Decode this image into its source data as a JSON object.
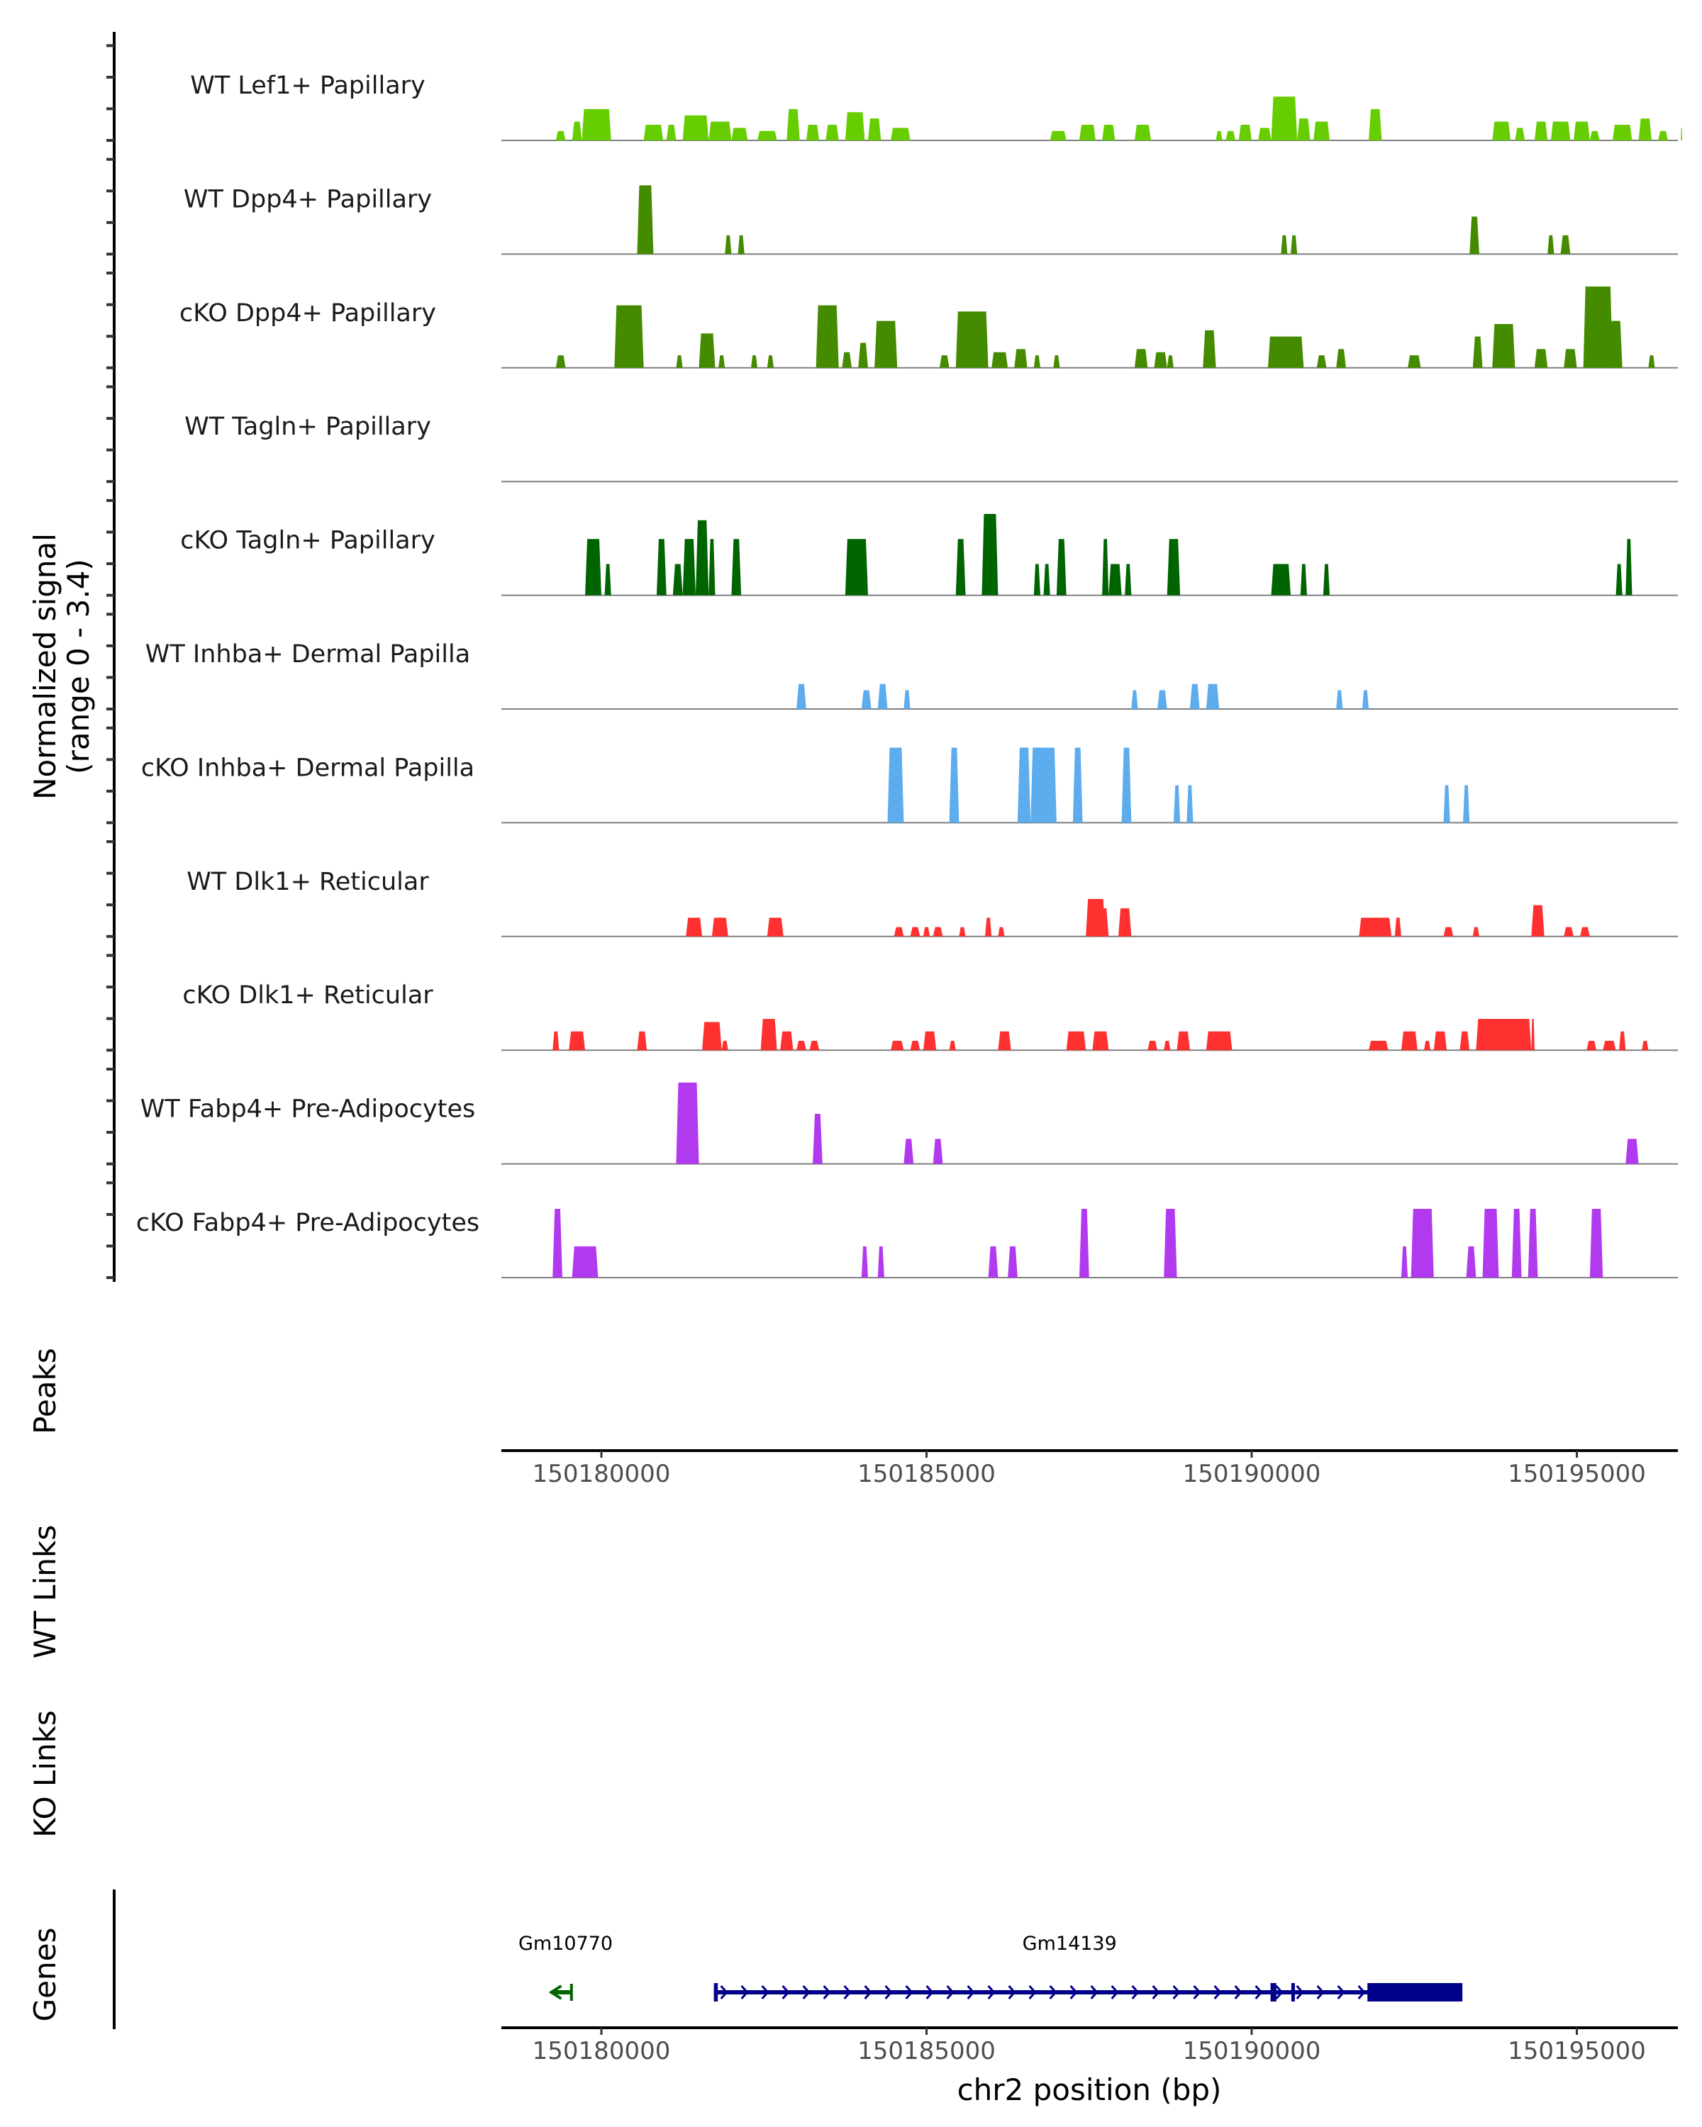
{
  "chart_data": {
    "type": "area",
    "title": "",
    "ylabel": "Normalized signal\n(range 0 - 3.4)",
    "ylabel_lines": [
      "Normalized signal",
      "(range 0 - 3.4)"
    ],
    "ylim": [
      0,
      3.4
    ],
    "xlabel": "chr2 position (bp)",
    "xlim": [
      150178460,
      150196560
    ],
    "x_ticks": [
      150180000,
      150185000,
      150190000,
      150195000
    ],
    "x_tick_labels": [
      "150180000",
      "150185000",
      "150190000",
      "150195000"
    ],
    "track_labels_side": [
      "Peaks",
      "WT Links",
      "KO Links",
      "Genes"
    ],
    "series": [
      {
        "name": "WT Lef1+ Papillary",
        "color": "#66CD00",
        "peaks": [
          [
            150179300,
            150179450,
            0.3
          ],
          [
            150179550,
            150179700,
            0.6
          ],
          [
            150179700,
            150180150,
            1.0
          ],
          [
            150180650,
            150180950,
            0.5
          ],
          [
            150181000,
            150181150,
            0.5
          ],
          [
            150181250,
            150181650,
            0.8
          ],
          [
            150181650,
            150182000,
            0.6
          ],
          [
            150182000,
            150182250,
            0.4
          ],
          [
            150182400,
            150182700,
            0.3
          ],
          [
            150182850,
            150183050,
            1.0
          ],
          [
            150183150,
            150183350,
            0.5
          ],
          [
            150183450,
            150183650,
            0.5
          ],
          [
            150183750,
            150184050,
            0.9
          ],
          [
            150184100,
            150184300,
            0.7
          ],
          [
            150184450,
            150184750,
            0.4
          ],
          [
            150186900,
            150187150,
            0.3
          ],
          [
            150187350,
            150187600,
            0.5
          ],
          [
            150187700,
            150187900,
            0.5
          ],
          [
            150188200,
            150188450,
            0.5
          ],
          [
            150189450,
            150189550,
            0.3
          ],
          [
            150189600,
            150189750,
            0.3
          ],
          [
            150189800,
            150190000,
            0.5
          ],
          [
            150190100,
            150190300,
            0.4
          ],
          [
            150190300,
            150190700,
            1.4
          ],
          [
            150190700,
            150190900,
            0.7
          ],
          [
            150190950,
            150191200,
            0.6
          ],
          [
            150191800,
            150192000,
            1.0
          ],
          [
            150193700,
            150193980,
            0.6
          ],
          [
            150194050,
            150194200,
            0.4
          ],
          [
            150194350,
            150194550,
            0.6
          ],
          [
            150194600,
            150194900,
            0.6
          ],
          [
            150194950,
            150195200,
            0.6
          ],
          [
            150195200,
            150195350,
            0.3
          ],
          [
            150195550,
            150195850,
            0.5
          ],
          [
            150195950,
            150196150,
            0.7
          ],
          [
            150196250,
            150196400,
            0.3
          ],
          [
            150196600,
            150196620,
            0.4
          ]
        ]
      },
      {
        "name": "WT Dpp4+ Papillary",
        "color": "#458B00",
        "peaks": [
          [
            150180550,
            150180800,
            2.2
          ],
          [
            150181900,
            150182000,
            0.6
          ],
          [
            150182100,
            150182200,
            0.6
          ],
          [
            150190450,
            150190550,
            0.6
          ],
          [
            150190600,
            150190700,
            0.6
          ],
          [
            150193350,
            150193500,
            1.2
          ],
          [
            150194550,
            150194650,
            0.6
          ],
          [
            150194750,
            150194900,
            0.6
          ]
        ]
      },
      {
        "name": "cKO Dpp4+ Papillary",
        "color": "#458B00",
        "peaks": [
          [
            150179300,
            150179450,
            0.4
          ],
          [
            150180200,
            150180650,
            2.0
          ],
          [
            150181150,
            150181250,
            0.4
          ],
          [
            150181500,
            150181750,
            1.1
          ],
          [
            150181800,
            150181900,
            0.4
          ],
          [
            150182300,
            150182400,
            0.4
          ],
          [
            150182550,
            150182650,
            0.4
          ],
          [
            150183300,
            150183650,
            2.0
          ],
          [
            150183700,
            150183850,
            0.5
          ],
          [
            150183950,
            150184100,
            0.8
          ],
          [
            150184200,
            150184550,
            1.5
          ],
          [
            150185200,
            150185350,
            0.4
          ],
          [
            150185450,
            150185950,
            1.8
          ],
          [
            150186000,
            150186250,
            0.5
          ],
          [
            150186350,
            150186550,
            0.6
          ],
          [
            150186650,
            150186750,
            0.4
          ],
          [
            150186950,
            150187050,
            0.4
          ],
          [
            150188200,
            150188400,
            0.6
          ],
          [
            150188500,
            150188700,
            0.5
          ],
          [
            150188700,
            150188800,
            0.4
          ],
          [
            150189250,
            150189450,
            1.2
          ],
          [
            150190250,
            150190800,
            1.0
          ],
          [
            150191000,
            150191150,
            0.4
          ],
          [
            150191300,
            150191450,
            0.6
          ],
          [
            150192400,
            150192600,
            0.4
          ],
          [
            150193400,
            150193550,
            1.0
          ],
          [
            150193700,
            150194050,
            1.4
          ],
          [
            150194350,
            150194550,
            0.6
          ],
          [
            150194800,
            150195000,
            0.6
          ],
          [
            150195100,
            150195550,
            2.6
          ],
          [
            150195500,
            150195700,
            1.5
          ],
          [
            150196100,
            150196200,
            0.4
          ]
        ]
      },
      {
        "name": "WT Tagln+ Papillary",
        "color": "#006400",
        "peaks": []
      },
      {
        "name": "cKO Tagln+ Papillary",
        "color": "#006400",
        "peaks": [
          [
            150179750,
            150180000,
            1.8
          ],
          [
            150180050,
            150180150,
            1.0
          ],
          [
            150180850,
            150181000,
            1.8
          ],
          [
            150181100,
            150181250,
            1.0
          ],
          [
            150181250,
            150181450,
            1.8
          ],
          [
            150181450,
            150181650,
            2.4
          ],
          [
            150181650,
            150181750,
            1.8
          ],
          [
            150182000,
            150182150,
            1.8
          ],
          [
            150183750,
            150184100,
            1.8
          ],
          [
            150185450,
            150185600,
            1.8
          ],
          [
            150185850,
            150186100,
            2.6
          ],
          [
            150186650,
            150186750,
            1.0
          ],
          [
            150186800,
            150186900,
            1.0
          ],
          [
            150187000,
            150187150,
            1.8
          ],
          [
            150187700,
            150187800,
            1.8
          ],
          [
            150187800,
            150188000,
            1.0
          ],
          [
            150188050,
            150188150,
            1.0
          ],
          [
            150188700,
            150188900,
            1.8
          ],
          [
            150190300,
            150190600,
            1.0
          ],
          [
            150190750,
            150190850,
            1.0
          ],
          [
            150191100,
            150191200,
            1.0
          ],
          [
            150195600,
            150195700,
            1.0
          ],
          [
            150195750,
            150195850,
            1.8
          ]
        ]
      },
      {
        "name": "WT Inhba+ Dermal Papilla",
        "color": "#5CACEE",
        "peaks": [
          [
            150183000,
            150183150,
            0.8
          ],
          [
            150184000,
            150184150,
            0.6
          ],
          [
            150184250,
            150184400,
            0.8
          ],
          [
            150184650,
            150184750,
            0.6
          ],
          [
            150188150,
            150188250,
            0.6
          ],
          [
            150188550,
            150188700,
            0.6
          ],
          [
            150189050,
            150189200,
            0.8
          ],
          [
            150189300,
            150189500,
            0.8
          ],
          [
            150191300,
            150191400,
            0.6
          ],
          [
            150191700,
            150191800,
            0.6
          ]
        ]
      },
      {
        "name": "cKO Inhba+ Dermal Papilla",
        "color": "#5CACEE",
        "peaks": [
          [
            150184400,
            150184650,
            2.4
          ],
          [
            150185350,
            150185500,
            2.4
          ],
          [
            150186400,
            150186600,
            2.4
          ],
          [
            150186600,
            150186950,
            2.4
          ],
          [
            150186850,
            150187000,
            2.4
          ],
          [
            150187250,
            150187400,
            2.4
          ],
          [
            150188000,
            150188150,
            2.4
          ],
          [
            150188800,
            150188900,
            1.2
          ],
          [
            150189000,
            150189100,
            1.2
          ],
          [
            150192950,
            150193050,
            1.2
          ],
          [
            150193250,
            150193350,
            1.2
          ]
        ]
      },
      {
        "name": "WT Dlk1+ Reticular",
        "color": "#FF3030",
        "peaks": [
          [
            150181300,
            150181550,
            0.6
          ],
          [
            150181700,
            150181950,
            0.6
          ],
          [
            150182550,
            150182800,
            0.6
          ],
          [
            150184500,
            150184650,
            0.3
          ],
          [
            150184750,
            150184900,
            0.3
          ],
          [
            150184950,
            150185050,
            0.3
          ],
          [
            150185100,
            150185250,
            0.3
          ],
          [
            150185500,
            150185600,
            0.3
          ],
          [
            150185900,
            150186000,
            0.6
          ],
          [
            150186100,
            150186200,
            0.3
          ],
          [
            150187450,
            150187750,
            1.2
          ],
          [
            150187650,
            150187800,
            0.9
          ],
          [
            150187950,
            150188150,
            0.9
          ],
          [
            150191650,
            150192150,
            0.6
          ],
          [
            150192200,
            150192300,
            0.6
          ],
          [
            150192950,
            150193100,
            0.3
          ],
          [
            150193400,
            150193500,
            0.3
          ],
          [
            150194300,
            150194500,
            1.0
          ],
          [
            150194800,
            150194950,
            0.3
          ],
          [
            150195050,
            150195200,
            0.3
          ]
        ]
      },
      {
        "name": "cKO Dlk1+ Reticular",
        "color": "#FF3030",
        "peaks": [
          [
            150179250,
            150179350,
            0.6
          ],
          [
            150179500,
            150179750,
            0.6
          ],
          [
            150180550,
            150180700,
            0.6
          ],
          [
            150181550,
            150181850,
            0.9
          ],
          [
            150181850,
            150181950,
            0.3
          ],
          [
            150182450,
            150182700,
            1.0
          ],
          [
            150182750,
            150182950,
            0.6
          ],
          [
            150183000,
            150183150,
            0.3
          ],
          [
            150183200,
            150183350,
            0.3
          ],
          [
            150184450,
            150184650,
            0.3
          ],
          [
            150184750,
            150184900,
            0.3
          ],
          [
            150184950,
            150185150,
            0.6
          ],
          [
            150185350,
            150185450,
            0.3
          ],
          [
            150186100,
            150186300,
            0.6
          ],
          [
            150187150,
            150187450,
            0.6
          ],
          [
            150187550,
            150187800,
            0.6
          ],
          [
            150188400,
            150188550,
            0.3
          ],
          [
            150188650,
            150188750,
            0.3
          ],
          [
            150188850,
            150189050,
            0.6
          ],
          [
            150189300,
            150189700,
            0.6
          ],
          [
            150191800,
            150192100,
            0.3
          ],
          [
            150192300,
            150192550,
            0.6
          ],
          [
            150192650,
            150192750,
            0.3
          ],
          [
            150192800,
            150193000,
            0.6
          ],
          [
            150193200,
            150193350,
            0.6
          ],
          [
            150193450,
            150194050,
            1.0
          ],
          [
            150193950,
            150194300,
            1.0
          ],
          [
            150194300,
            150194350,
            1.0
          ],
          [
            150195150,
            150195300,
            0.3
          ],
          [
            150195400,
            150195600,
            0.3
          ],
          [
            150195650,
            150195750,
            0.6
          ],
          [
            150196000,
            150196100,
            0.3
          ]
        ]
      },
      {
        "name": "WT Fabp4+ Pre-Adipocytes",
        "color": "#B23AEE",
        "peaks": [
          [
            150181150,
            150181500,
            2.6
          ],
          [
            150183250,
            150183400,
            1.6
          ],
          [
            150184650,
            150184800,
            0.8
          ],
          [
            150185100,
            150185250,
            0.8
          ],
          [
            150195750,
            150195950,
            0.8
          ]
        ]
      },
      {
        "name": "cKO Fabp4+ Pre-Adipocytes",
        "color": "#B23AEE",
        "peaks": [
          [
            150179250,
            150179400,
            2.2
          ],
          [
            150179550,
            150179950,
            1.0
          ],
          [
            150184000,
            150184100,
            1.0
          ],
          [
            150184250,
            150184350,
            1.0
          ],
          [
            150185950,
            150186100,
            1.0
          ],
          [
            150186250,
            150186400,
            1.0
          ],
          [
            150187350,
            150187500,
            2.2
          ],
          [
            150188650,
            150188850,
            2.2
          ],
          [
            150192300,
            150192400,
            1.0
          ],
          [
            150192450,
            150192800,
            2.2
          ],
          [
            150193300,
            150193450,
            1.0
          ],
          [
            150193550,
            150193800,
            2.2
          ],
          [
            150194000,
            150194150,
            2.2
          ],
          [
            150194250,
            150194400,
            2.2
          ],
          [
            150195200,
            150195400,
            2.2
          ]
        ]
      }
    ],
    "genes": [
      {
        "name": "Gm10770",
        "start": 150179230,
        "end": 150179540,
        "strand": "-",
        "color": "#006400",
        "label_x_bp": 150179450
      },
      {
        "name": "Gm14139",
        "start": 150181730,
        "end": 150193240,
        "strand": "+",
        "color": "#00008B",
        "label_x_bp": 150187200,
        "exons": [
          [
            150181730,
            150181790
          ],
          [
            150190290,
            150190380
          ],
          [
            150190610,
            150190640
          ],
          [
            150191780,
            150193240
          ]
        ]
      }
    ],
    "grid": false,
    "legend": "none"
  }
}
